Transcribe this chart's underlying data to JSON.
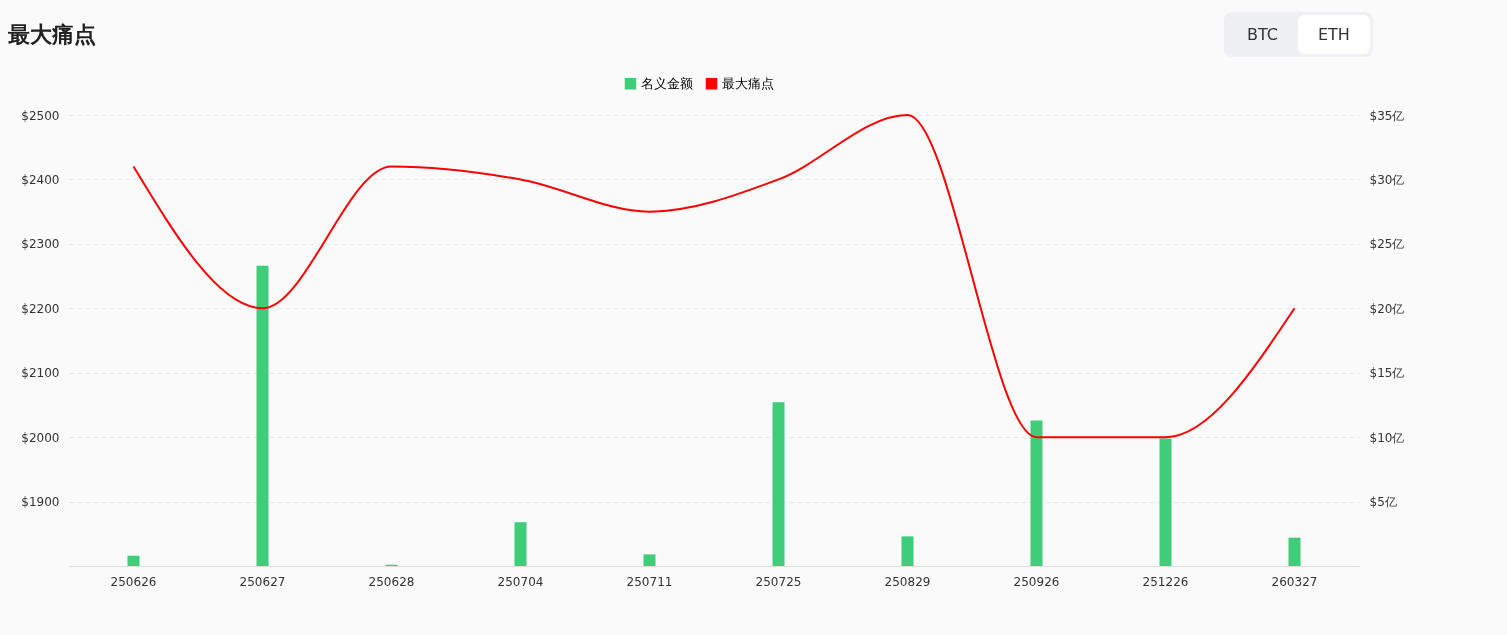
{
  "chart_data": {
    "type": "bar",
    "title": "最大痛点",
    "annotations": [
      "BTC",
      "ETH"
    ],
    "categories": [
      "250626",
      "250627",
      "250628",
      "250704",
      "250711",
      "250725",
      "250829",
      "250926",
      "251226",
      "260327"
    ],
    "series": [
      {
        "name": "名义金额",
        "axis": "y2",
        "color": "#40cd7a",
        "values": [
          0.8,
          23.3,
          0.1,
          3.4,
          0.9,
          12.7,
          2.3,
          11.3,
          9.9,
          2.2
        ]
      },
      {
        "name": "最大痛点",
        "type": "line",
        "color": "#ff0000",
        "values": [
          2420,
          2200,
          2420,
          2400,
          2350,
          2400,
          2500,
          2000,
          2000,
          2200
        ]
      }
    ],
    "ylim": [
      1800,
      2500
    ],
    "yticks": [
      {
        "value": 1900,
        "label": "$1900"
      },
      {
        "value": 2000,
        "label": "$2000"
      },
      {
        "value": 2100,
        "label": "$2100"
      },
      {
        "value": 2200,
        "label": "$2200"
      },
      {
        "value": 2300,
        "label": "$2300"
      },
      {
        "value": 2400,
        "label": "$2400"
      },
      {
        "value": 2500,
        "label": "$2500"
      }
    ],
    "y2lim": [
      0,
      35
    ],
    "y2ticks": [
      {
        "value": 5,
        "label": "$5亿"
      },
      {
        "value": 10,
        "label": "$10亿"
      },
      {
        "value": 15,
        "label": "$15亿"
      },
      {
        "value": 20,
        "label": "$20亿"
      },
      {
        "value": 25,
        "label": "$25亿"
      },
      {
        "value": 30,
        "label": "$30亿"
      },
      {
        "value": 35,
        "label": "$35亿"
      }
    ],
    "grid": "y",
    "legend": "top",
    "marker": "none",
    "line_style": "solid"
  }
}
